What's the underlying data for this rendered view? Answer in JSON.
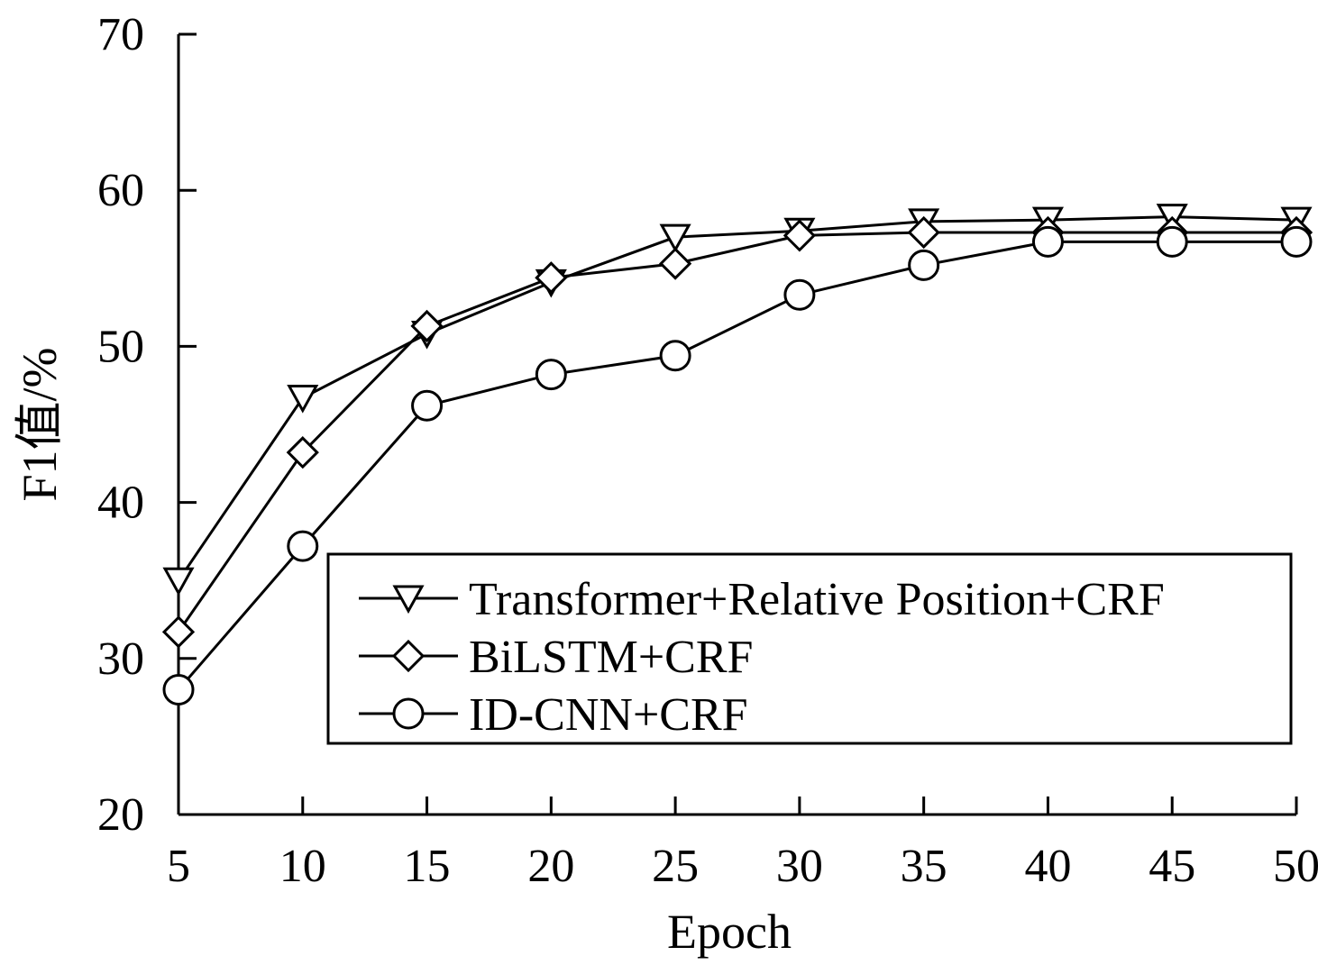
{
  "chart_data": {
    "type": "line",
    "title": "",
    "xlabel": "Epoch",
    "ylabel": "F1值/%",
    "x": [
      5,
      10,
      15,
      20,
      25,
      30,
      35,
      40,
      45,
      50
    ],
    "xlim": [
      5,
      50
    ],
    "ylim": [
      20,
      70
    ],
    "x_ticks": [
      5,
      10,
      15,
      20,
      25,
      30,
      35,
      40,
      45,
      50
    ],
    "y_ticks": [
      20,
      30,
      40,
      50,
      60,
      70
    ],
    "grid": false,
    "legend_position": "bottom-right",
    "line_color": "#000000",
    "series": [
      {
        "name": "Transformer+Relative Position+CRF",
        "marker": "triangle-down",
        "values": [
          35.0,
          46.7,
          50.8,
          54.1,
          57.0,
          57.4,
          58.0,
          58.1,
          58.3,
          58.1
        ]
      },
      {
        "name": "BiLSTM+CRF",
        "marker": "diamond",
        "values": [
          31.7,
          43.2,
          51.3,
          54.4,
          55.3,
          57.1,
          57.3,
          57.3,
          57.3,
          57.3
        ]
      },
      {
        "name": "ID-CNN+CRF",
        "marker": "circle",
        "values": [
          28.0,
          37.2,
          46.2,
          48.2,
          49.4,
          53.3,
          55.2,
          56.7,
          56.7,
          56.7
        ]
      }
    ]
  }
}
